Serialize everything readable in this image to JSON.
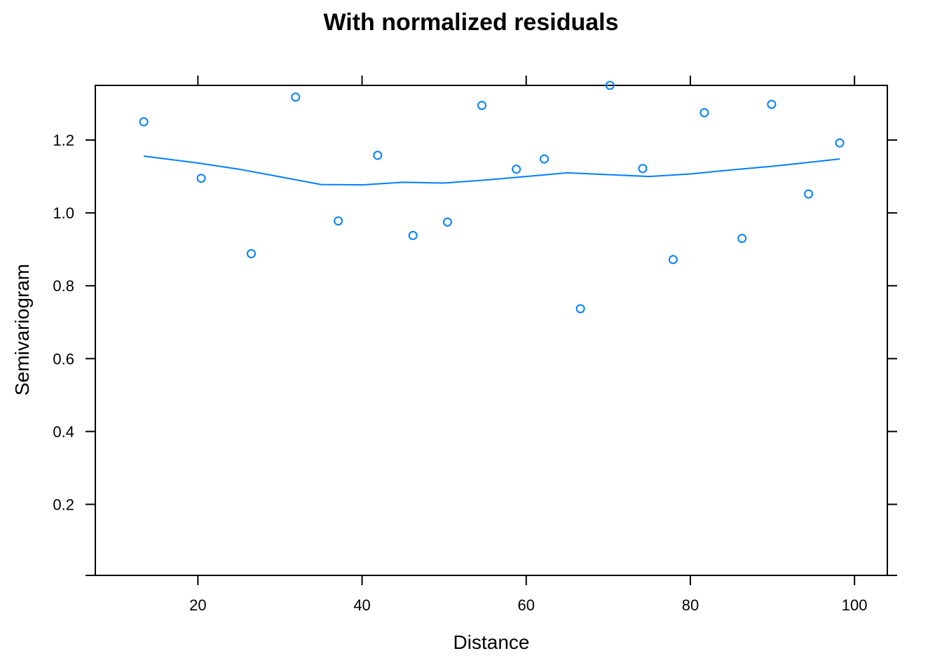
{
  "chart_data": {
    "type": "scatter",
    "title": "With normalized residuals",
    "xlabel": "Distance",
    "ylabel": "Semivariogram",
    "xlim": [
      7.5,
      104
    ],
    "ylim": [
      0.005,
      1.35
    ],
    "x_ticks": [
      20,
      40,
      60,
      80,
      100
    ],
    "x_tick_labels": [
      "20",
      "40",
      "60",
      "80",
      "100"
    ],
    "y_ticks": [
      0.2,
      0.4,
      0.6,
      0.8,
      1.0,
      1.2
    ],
    "y_tick_labels": [
      "0.2",
      "0.4",
      "0.6",
      "0.8",
      "1.0",
      "1.2"
    ],
    "grid": false,
    "legend": "none",
    "color": "#0080ff",
    "series": [
      {
        "kind": "points",
        "x": [
          13.4,
          20.4,
          26.5,
          31.9,
          37.1,
          41.9,
          46.2,
          50.4,
          54.6,
          58.8,
          62.2,
          66.6,
          70.2,
          74.2,
          77.9,
          81.7,
          86.3,
          89.9,
          94.4,
          98.2
        ],
        "y": [
          1.25,
          1.095,
          0.888,
          1.318,
          0.978,
          1.158,
          0.938,
          0.975,
          1.295,
          1.12,
          1.148,
          0.737,
          1.35,
          1.122,
          0.872,
          1.275,
          0.93,
          1.298,
          1.052,
          1.192
        ]
      },
      {
        "kind": "line",
        "x": [
          13.4,
          20,
          25,
          30,
          35,
          40,
          45,
          50,
          55,
          60,
          65,
          70,
          75,
          80,
          85,
          90,
          95,
          98.2
        ],
        "y": [
          1.156,
          1.137,
          1.12,
          1.099,
          1.078,
          1.077,
          1.084,
          1.082,
          1.09,
          1.1,
          1.11,
          1.105,
          1.1,
          1.107,
          1.118,
          1.128,
          1.14,
          1.148
        ]
      }
    ]
  }
}
